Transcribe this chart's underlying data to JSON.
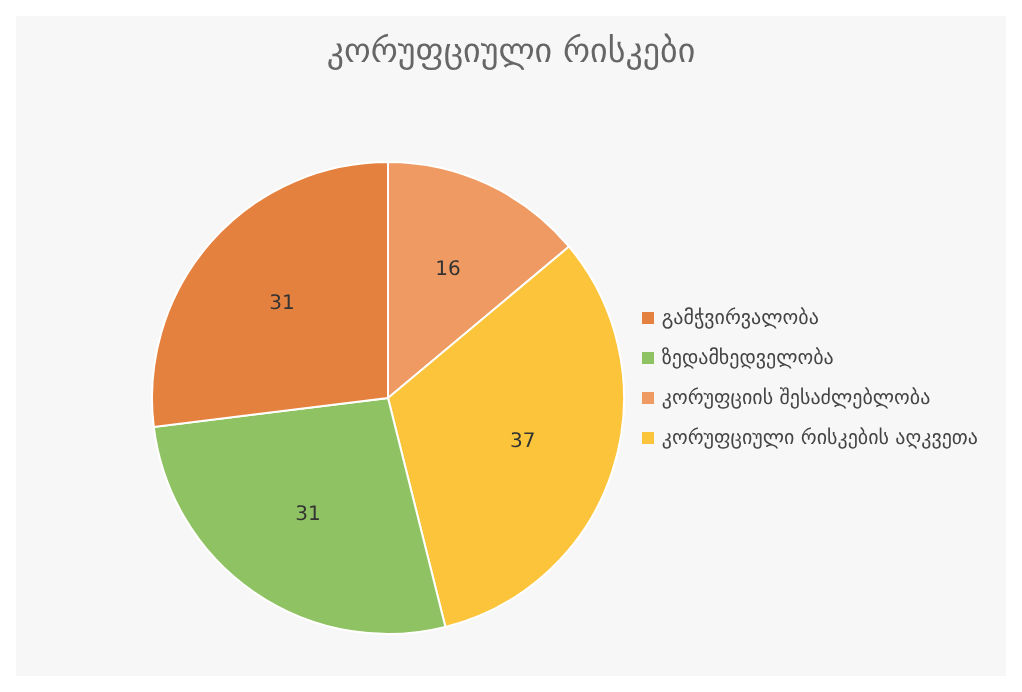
{
  "chart_data": {
    "type": "pie",
    "title": "კორუფციული რისკები",
    "categories": [
      "კორუფციის შესაძლებლობა",
      "კორუფციული რისკების აღკვეთა",
      "ზედამხედველობა",
      "გამჭვირვალობა"
    ],
    "values": [
      16,
      37,
      31,
      31
    ],
    "colors": [
      "#ee9a62",
      "#fcc43a",
      "#8fc263",
      "#e5813f"
    ],
    "data_labels": true,
    "legend": "right"
  }
}
